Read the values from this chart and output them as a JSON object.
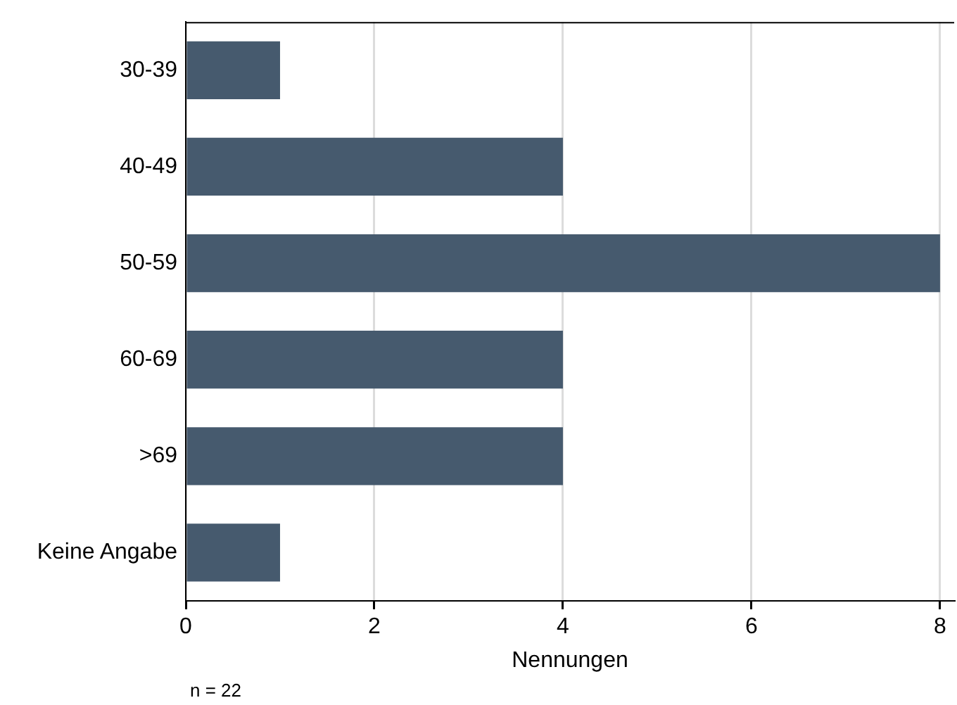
{
  "chart_data": {
    "type": "bar",
    "orientation": "horizontal",
    "categories": [
      "30-39",
      "40-49",
      "50-59",
      "60-69",
      ">69",
      "Keine Angabe"
    ],
    "values": [
      1,
      4,
      8,
      4,
      4,
      1
    ],
    "color": "#465a6e",
    "xlim": [
      0,
      8.15
    ],
    "xticks": [
      0,
      2,
      4,
      6,
      8
    ],
    "xlabel": "Nennungen",
    "grid": "x",
    "legend": false,
    "annotations": [
      "n = 22"
    ]
  }
}
